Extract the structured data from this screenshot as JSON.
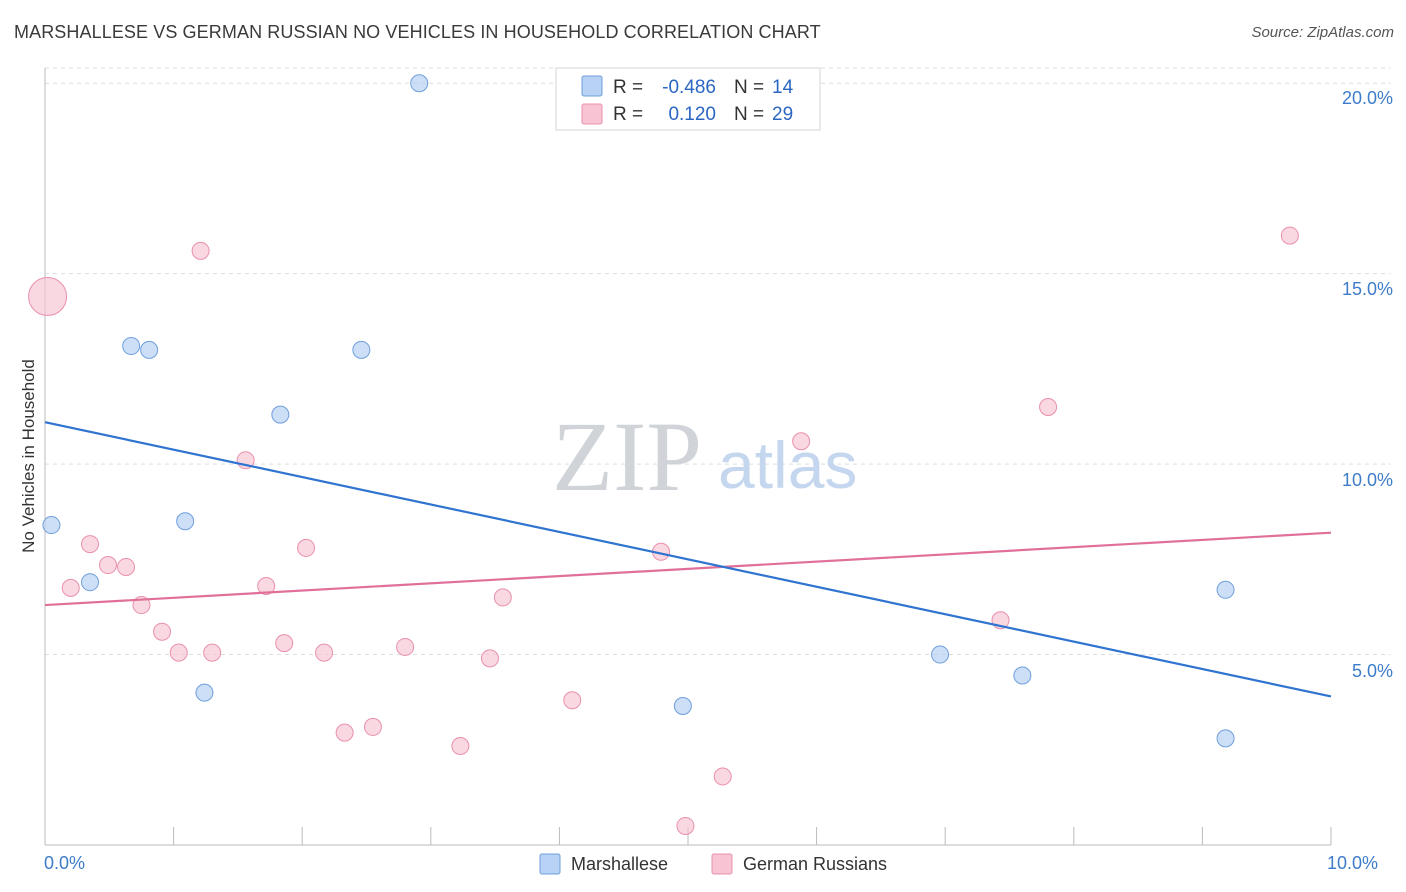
{
  "header": {
    "title": "MARSHALLESE VS GERMAN RUSSIAN NO VEHICLES IN HOUSEHOLD CORRELATION CHART",
    "source": "Source: ZipAtlas.com"
  },
  "watermark": {
    "zip": "ZIP",
    "atlas": "atlas"
  },
  "legend": {
    "rows": [
      {
        "r_label": "R =",
        "r_value": "-0.486",
        "n_label": "N =",
        "n_value": "14"
      },
      {
        "r_label": "R =",
        "r_value": "0.120",
        "n_label": "N =",
        "n_value": "29"
      }
    ]
  },
  "colors": {
    "blue_fill": "#b7d2f4",
    "blue_stroke": "#6f9fdc",
    "blue_line": "#2f74d0",
    "pink_fill": "#f8c3d2",
    "pink_stroke": "#e990ab",
    "pink_line": "#e0709a",
    "tick_blue": "#3d7cc9"
  },
  "chart_data": {
    "type": "scatter",
    "title": "MARSHALLESE VS GERMAN RUSSIAN NO VEHICLES IN HOUSEHOLD CORRELATION CHART",
    "xlabel": "",
    "ylabel": "No Vehicles in Household",
    "xlim": [
      0,
      10
    ],
    "ylim": [
      0,
      20.4
    ],
    "x_tick_labels": [
      "0.0%",
      "10.0%"
    ],
    "y_ticks": [
      5,
      10,
      15,
      20
    ],
    "y_tick_labels": [
      "5.0%",
      "10.0%",
      "15.0%",
      "20.0%"
    ],
    "series": [
      {
        "name": "Marshallese",
        "color": "#6f9fdc",
        "r": -0.486,
        "n": 14,
        "points": [
          {
            "x": 2.91,
            "y": 20.0
          },
          {
            "x": 0.67,
            "y": 13.1
          },
          {
            "x": 0.81,
            "y": 13.0
          },
          {
            "x": 2.46,
            "y": 13.0
          },
          {
            "x": 1.83,
            "y": 11.3
          },
          {
            "x": 0.05,
            "y": 8.4
          },
          {
            "x": 1.09,
            "y": 8.5
          },
          {
            "x": 0.35,
            "y": 6.9
          },
          {
            "x": 9.18,
            "y": 6.7
          },
          {
            "x": 6.96,
            "y": 5.0
          },
          {
            "x": 7.6,
            "y": 4.45
          },
          {
            "x": 1.24,
            "y": 4.0
          },
          {
            "x": 4.96,
            "y": 3.65
          },
          {
            "x": 9.18,
            "y": 2.8
          }
        ],
        "trend": {
          "x1": 0.0,
          "y1": 11.1,
          "x2": 10.0,
          "y2": 3.9
        }
      },
      {
        "name": "German Russians",
        "color": "#e990ab",
        "r": 0.12,
        "n": 29,
        "points": [
          {
            "x": 0.02,
            "y": 14.4,
            "big": true
          },
          {
            "x": 1.21,
            "y": 15.6
          },
          {
            "x": 9.68,
            "y": 16.0
          },
          {
            "x": 7.8,
            "y": 11.5
          },
          {
            "x": 5.88,
            "y": 10.6
          },
          {
            "x": 1.56,
            "y": 10.1
          },
          {
            "x": 0.35,
            "y": 7.9
          },
          {
            "x": 2.03,
            "y": 7.8
          },
          {
            "x": 4.79,
            "y": 7.7
          },
          {
            "x": 0.49,
            "y": 7.35
          },
          {
            "x": 0.63,
            "y": 7.3
          },
          {
            "x": 0.2,
            "y": 6.75
          },
          {
            "x": 1.72,
            "y": 6.8
          },
          {
            "x": 3.56,
            "y": 6.5
          },
          {
            "x": 0.75,
            "y": 6.3
          },
          {
            "x": 7.43,
            "y": 5.9
          },
          {
            "x": 0.91,
            "y": 5.6
          },
          {
            "x": 1.86,
            "y": 5.3
          },
          {
            "x": 2.8,
            "y": 5.2
          },
          {
            "x": 1.04,
            "y": 5.05
          },
          {
            "x": 1.3,
            "y": 5.05
          },
          {
            "x": 2.17,
            "y": 5.05
          },
          {
            "x": 3.46,
            "y": 4.9
          },
          {
            "x": 4.1,
            "y": 3.8
          },
          {
            "x": 2.55,
            "y": 3.1
          },
          {
            "x": 2.33,
            "y": 2.95
          },
          {
            "x": 3.23,
            "y": 2.6
          },
          {
            "x": 5.27,
            "y": 1.8
          },
          {
            "x": 4.98,
            "y": 0.5
          }
        ],
        "trend": {
          "x1": 0.0,
          "y1": 6.3,
          "x2": 10.0,
          "y2": 8.2
        }
      }
    ],
    "legend": [
      "Marshallese",
      "German Russians"
    ]
  }
}
